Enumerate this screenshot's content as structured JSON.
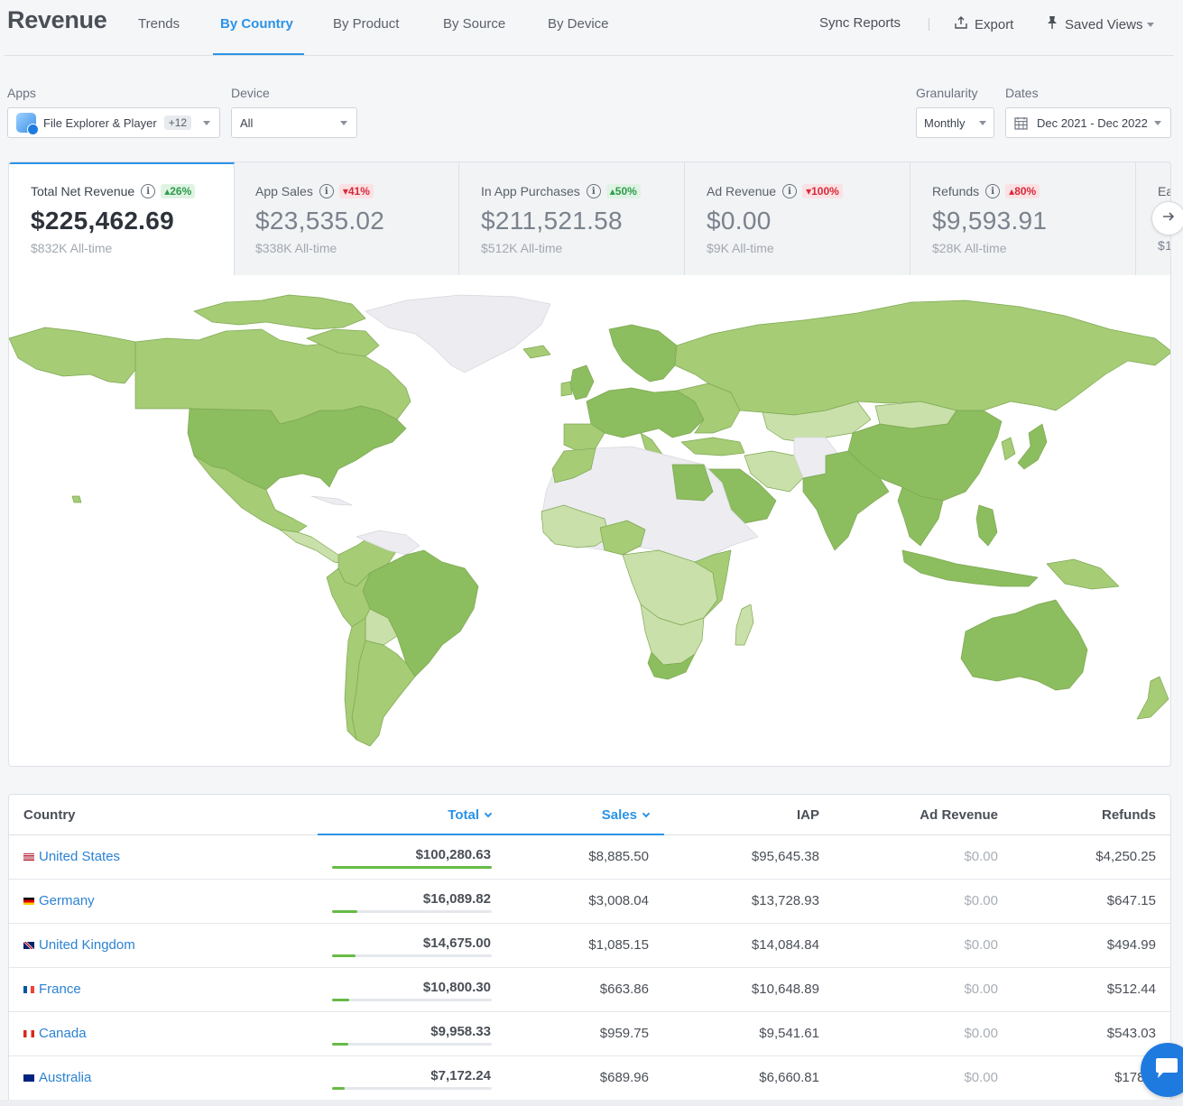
{
  "header": {
    "title": "Revenue",
    "tabs": [
      {
        "label": "Trends"
      },
      {
        "label": "By Country"
      },
      {
        "label": "By Product"
      },
      {
        "label": "By Source"
      },
      {
        "label": "By Device"
      }
    ],
    "sync_label": "Sync Reports",
    "export_label": "Export",
    "saved_views_label": "Saved Views"
  },
  "filters": {
    "apps": {
      "label": "Apps",
      "value": "File Explorer & Player",
      "extra": "+12"
    },
    "device": {
      "label": "Device",
      "value": "All"
    },
    "granularity": {
      "label": "Granularity",
      "value": "Monthly"
    },
    "dates": {
      "label": "Dates",
      "value": "Dec 2021 - Dec 2022"
    }
  },
  "kpis": [
    {
      "label": "Total Net Revenue",
      "delta": "26%",
      "value": "$225,462.69",
      "alltime": "$832K All-time"
    },
    {
      "label": "App Sales",
      "delta": "41%",
      "value": "$23,535.02",
      "alltime": "$338K All-time"
    },
    {
      "label": "In App Purchases",
      "delta": "50%",
      "value": "$211,521.58",
      "alltime": "$512K All-time"
    },
    {
      "label": "Ad Revenue",
      "delta": "100%",
      "value": "$0.00",
      "alltime": "$9K All-time"
    },
    {
      "label": "Refunds",
      "delta": "80%",
      "value": "$9,593.91",
      "alltime": "$28K All-time"
    },
    {
      "label": "Ea",
      "value": "$1"
    }
  ],
  "table": {
    "headers": {
      "country": "Country",
      "total": "Total",
      "sales": "Sales",
      "iap": "IAP",
      "ad_revenue": "Ad Revenue",
      "refunds": "Refunds"
    },
    "rows": [
      {
        "country": "United States",
        "total": "$100,280.63",
        "share": 1.0,
        "sales": "$8,885.50",
        "iap": "$95,645.38",
        "ad": "$0.00",
        "refunds": "$4,250.25"
      },
      {
        "country": "Germany",
        "total": "$16,089.82",
        "share": 0.16,
        "sales": "$3,008.04",
        "iap": "$13,728.93",
        "ad": "$0.00",
        "refunds": "$647.15"
      },
      {
        "country": "United Kingdom",
        "total": "$14,675.00",
        "share": 0.146,
        "sales": "$1,085.15",
        "iap": "$14,084.84",
        "ad": "$0.00",
        "refunds": "$494.99"
      },
      {
        "country": "France",
        "total": "$10,800.30",
        "share": 0.108,
        "sales": "$663.86",
        "iap": "$10,648.89",
        "ad": "$0.00",
        "refunds": "$512.44"
      },
      {
        "country": "Canada",
        "total": "$9,958.33",
        "share": 0.099,
        "sales": "$959.75",
        "iap": "$9,541.61",
        "ad": "$0.00",
        "refunds": "$543.03"
      },
      {
        "country": "Australia",
        "total": "$7,172.24",
        "share": 0.072,
        "sales": "$689.96",
        "iap": "$6,660.81",
        "ad": "$0.00",
        "refunds": "$178.5"
      }
    ]
  },
  "colors": {
    "accent": "#2b93e6",
    "map_high": "#8cbd5f",
    "map_mid": "#a8cd78",
    "map_low": "#c9e0aa",
    "map_none": "#ececf1",
    "bar": "#66bb45",
    "up": "#2e9b4a",
    "down": "#d6293a"
  }
}
